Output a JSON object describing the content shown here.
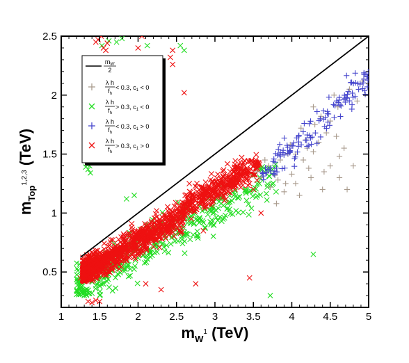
{
  "chart_data": {
    "type": "scatter",
    "xlim": [
      1,
      5
    ],
    "ylim": [
      0.2,
      2.5
    ],
    "x_ticks": [
      "1",
      "1.5",
      "2",
      "2.5",
      "3",
      "3.5",
      "4",
      "4.5",
      "5"
    ],
    "y_ticks": [
      "0.5",
      "1",
      "1.5",
      "2",
      "2.5"
    ],
    "xlabel": {
      "main": "m",
      "sub": "W",
      "sup": "1",
      "unit": " (TeV)"
    },
    "ylabel": {
      "main": "m",
      "sub": "Top",
      "sup": "1,2,3",
      "unit": " (TeV)"
    },
    "grid": false,
    "legend_placement": "upper-left",
    "line": {
      "name_num": "m",
      "name_sub": "W'",
      "name_den": "2",
      "color": "#000000",
      "points": [
        [
          1.25,
          0.625
        ],
        [
          5.0,
          2.5
        ]
      ]
    },
    "series": [
      {
        "key": "gray",
        "marker": "+",
        "color": "#a89a8c",
        "label_num": "λ h",
        "label_den": "f",
        "label_den_sub": "h",
        "label_cond": " < 0.3, c",
        "label_cond_sub": "1",
        "label_tail": " < 0",
        "count": 45,
        "points": [
          [
            4.55,
            2.0
          ],
          [
            4.75,
            2.05
          ],
          [
            4.6,
            1.9
          ],
          [
            4.3,
            1.75
          ],
          [
            4.45,
            1.68
          ],
          [
            4.2,
            1.55
          ],
          [
            4.05,
            1.5
          ],
          [
            4.62,
            1.48
          ],
          [
            4.42,
            1.35
          ],
          [
            4.22,
            1.38
          ],
          [
            4.0,
            1.33
          ],
          [
            3.92,
            1.25
          ],
          [
            3.72,
            1.22
          ],
          [
            3.8,
            1.08
          ],
          [
            4.1,
            1.15
          ],
          [
            4.62,
            1.3
          ],
          [
            4.8,
            1.4
          ],
          [
            5.0,
            1.3
          ],
          [
            3.85,
            1.45
          ],
          [
            3.6,
            1.3
          ],
          [
            4.72,
            1.2
          ],
          [
            4.35,
            1.6
          ],
          [
            4.5,
            1.4
          ],
          [
            3.95,
            1.5
          ],
          [
            4.15,
            1.45
          ],
          [
            3.7,
            1.4
          ],
          [
            3.55,
            1.35
          ],
          [
            4.25,
            1.3
          ],
          [
            4.4,
            1.2
          ],
          [
            4.05,
            1.25
          ],
          [
            3.9,
            1.18
          ],
          [
            3.78,
            1.32
          ],
          [
            4.68,
            1.55
          ],
          [
            4.85,
            1.95
          ],
          [
            4.92,
            2.12
          ],
          [
            4.28,
            1.9
          ],
          [
            4.38,
            1.82
          ],
          [
            4.5,
            1.78
          ],
          [
            4.18,
            1.62
          ],
          [
            4.12,
            1.72
          ],
          [
            3.98,
            1.58
          ],
          [
            4.58,
            1.65
          ],
          [
            3.65,
            1.45
          ],
          [
            3.82,
            1.28
          ],
          [
            4.28,
            1.52
          ]
        ]
      },
      {
        "key": "green",
        "marker": "x",
        "color": "#22dd22",
        "label_num": "λ h",
        "label_den": "f",
        "label_den_sub": "h",
        "label_cond": " > 0.3, c",
        "label_cond_sub": "1",
        "label_tail": " < 0",
        "count": 420
      },
      {
        "key": "blue",
        "marker": "+",
        "color": "#4444cc",
        "label_num": "λ h",
        "label_den": "f",
        "label_den_sub": "h",
        "label_cond": " < 0.3, c",
        "label_cond_sub": "1",
        "label_tail": " > 0",
        "count": 130
      },
      {
        "key": "red",
        "marker": "x",
        "color": "#ee1111",
        "label_num": "λ h",
        "label_den": "f",
        "label_den_sub": "h",
        "label_cond": " > 0.3, c",
        "label_cond_sub": "1",
        "label_tail": " > 0",
        "count": 1500
      }
    ]
  }
}
